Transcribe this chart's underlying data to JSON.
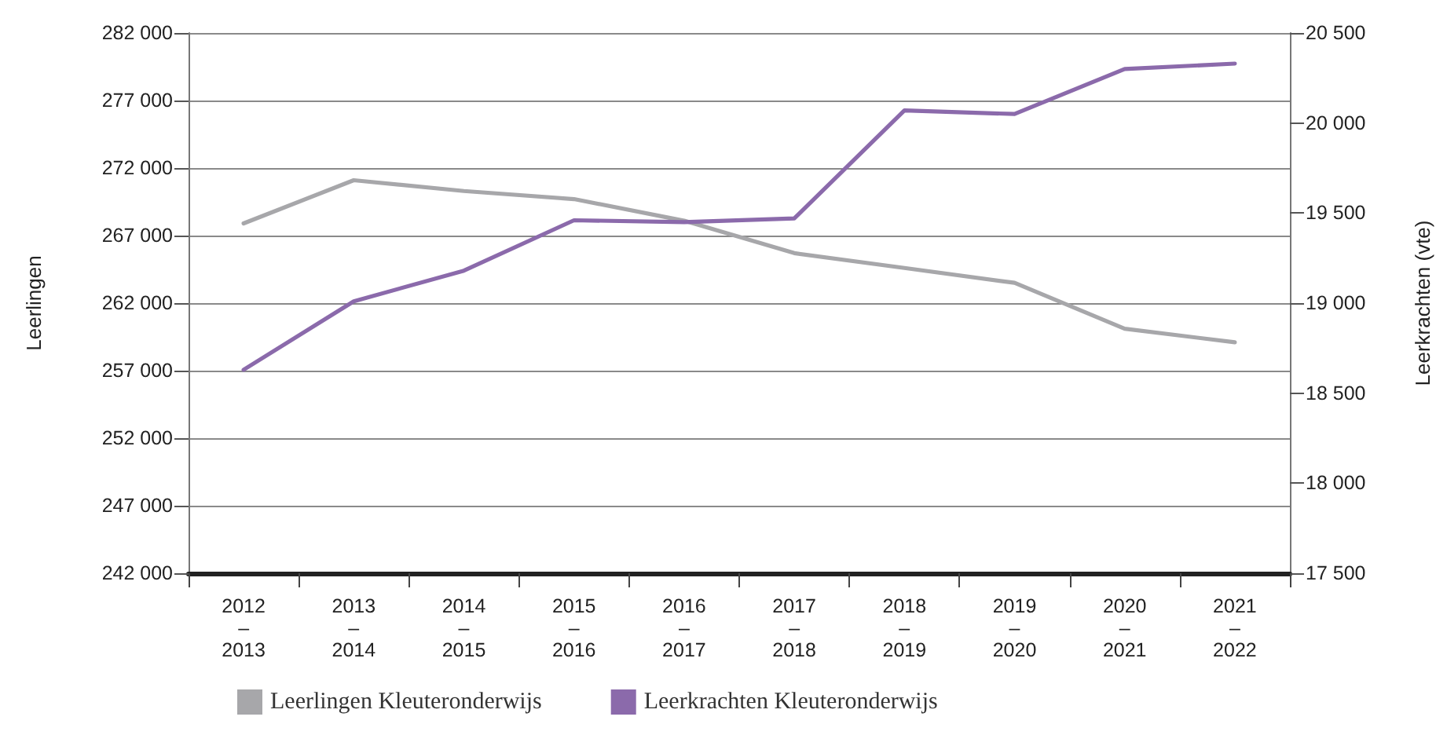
{
  "chart_data": {
    "type": "line",
    "ylabel": "Leerlingen",
    "y2label": "Leerkrachten (vte)",
    "categories": [
      "2012\n–\n2013",
      "2013\n–\n2014",
      "2014\n–\n2015",
      "2015\n–\n2016",
      "2016\n–\n2017",
      "2017\n–\n2018",
      "2018\n–\n2019",
      "2019\n–\n2020",
      "2020\n–\n2021",
      "2021\n–\n2022"
    ],
    "series": [
      {
        "name": "Leerlingen Kleuteronderwijs",
        "color": "#a7a7aa",
        "values": [
          267900,
          271100,
          270300,
          269700,
          268100,
          265700,
          264600,
          263500,
          260100,
          259100
        ]
      },
      {
        "name": "Leerkrachten Kleuteronderwijs",
        "color": "#8b6aab",
        "axis": "y2",
        "values": [
          18630,
          19010,
          19180,
          19460,
          19450,
          19470,
          20070,
          20050,
          20300,
          20330
        ]
      }
    ],
    "ylim": [
      242000,
      282000
    ],
    "yticks": [
      {
        "value": 242000,
        "label": "242 000"
      },
      {
        "value": 247000,
        "label": "247 000"
      },
      {
        "value": 252000,
        "label": "252 000"
      },
      {
        "value": 257000,
        "label": "257 000"
      },
      {
        "value": 262000,
        "label": "262 000"
      },
      {
        "value": 267000,
        "label": "267 000"
      },
      {
        "value": 272000,
        "label": "272 000"
      },
      {
        "value": 277000,
        "label": "277 000"
      },
      {
        "value": 282000,
        "label": "282 000"
      }
    ],
    "y2lim": [
      17500,
      20500
    ],
    "y2ticks": [
      {
        "value": 17500,
        "label": "17 500"
      },
      {
        "value": 18000,
        "label": "18 000"
      },
      {
        "value": 18500,
        "label": "18 500"
      },
      {
        "value": 19000,
        "label": "19 000"
      },
      {
        "value": 19500,
        "label": "19 500"
      },
      {
        "value": 20000,
        "label": "20 000"
      },
      {
        "value": 20500,
        "label": "20 500"
      }
    ],
    "grid": "y",
    "legend": "bottom left",
    "marker": "none",
    "line_style": "solid"
  }
}
